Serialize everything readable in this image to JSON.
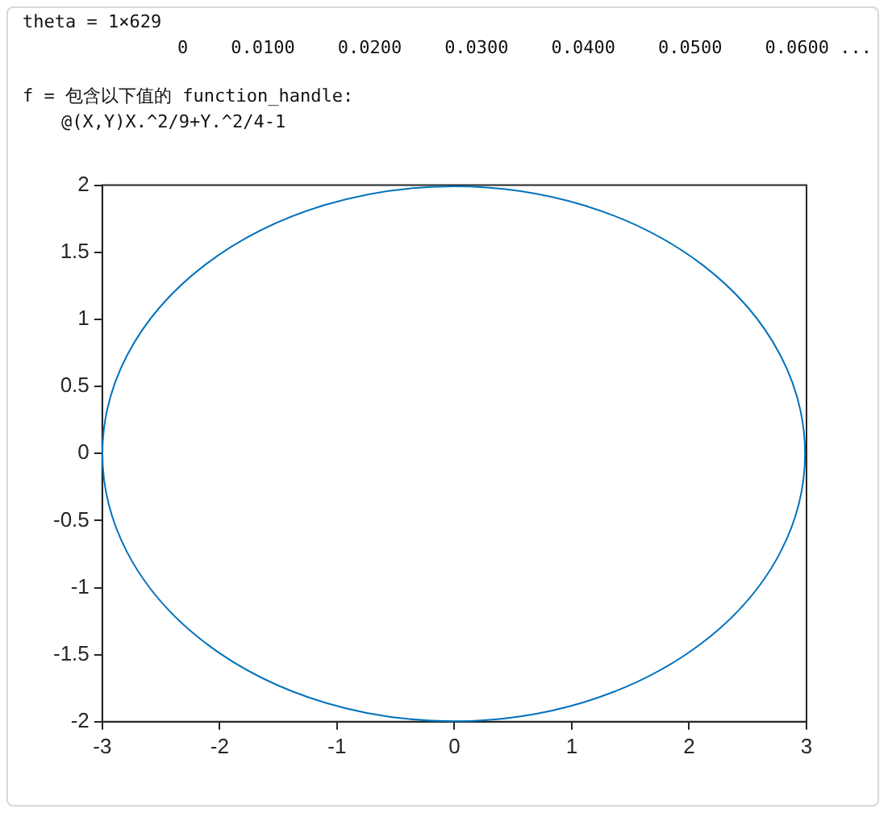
{
  "chart_data": {
    "type": "line",
    "annotations": [
      "theta = 1×629",
      "0    0.0100    0.0200    0.0300    0.0400    0.0500    0.0600 ...",
      "f = 包含以下值的 function_handle:",
      "@(X,Y)X.^2/9+Y.^2/4-1"
    ],
    "xlim": [
      -3,
      3
    ],
    "xticks": [
      -3,
      -2,
      -1,
      0,
      1,
      2,
      3
    ],
    "ylim": [
      -2,
      2
    ],
    "yticks": [
      -2,
      -1.5,
      -1,
      -0.5,
      0,
      0.5,
      1,
      1.5,
      2
    ],
    "grid": false,
    "legend": false
  }
}
